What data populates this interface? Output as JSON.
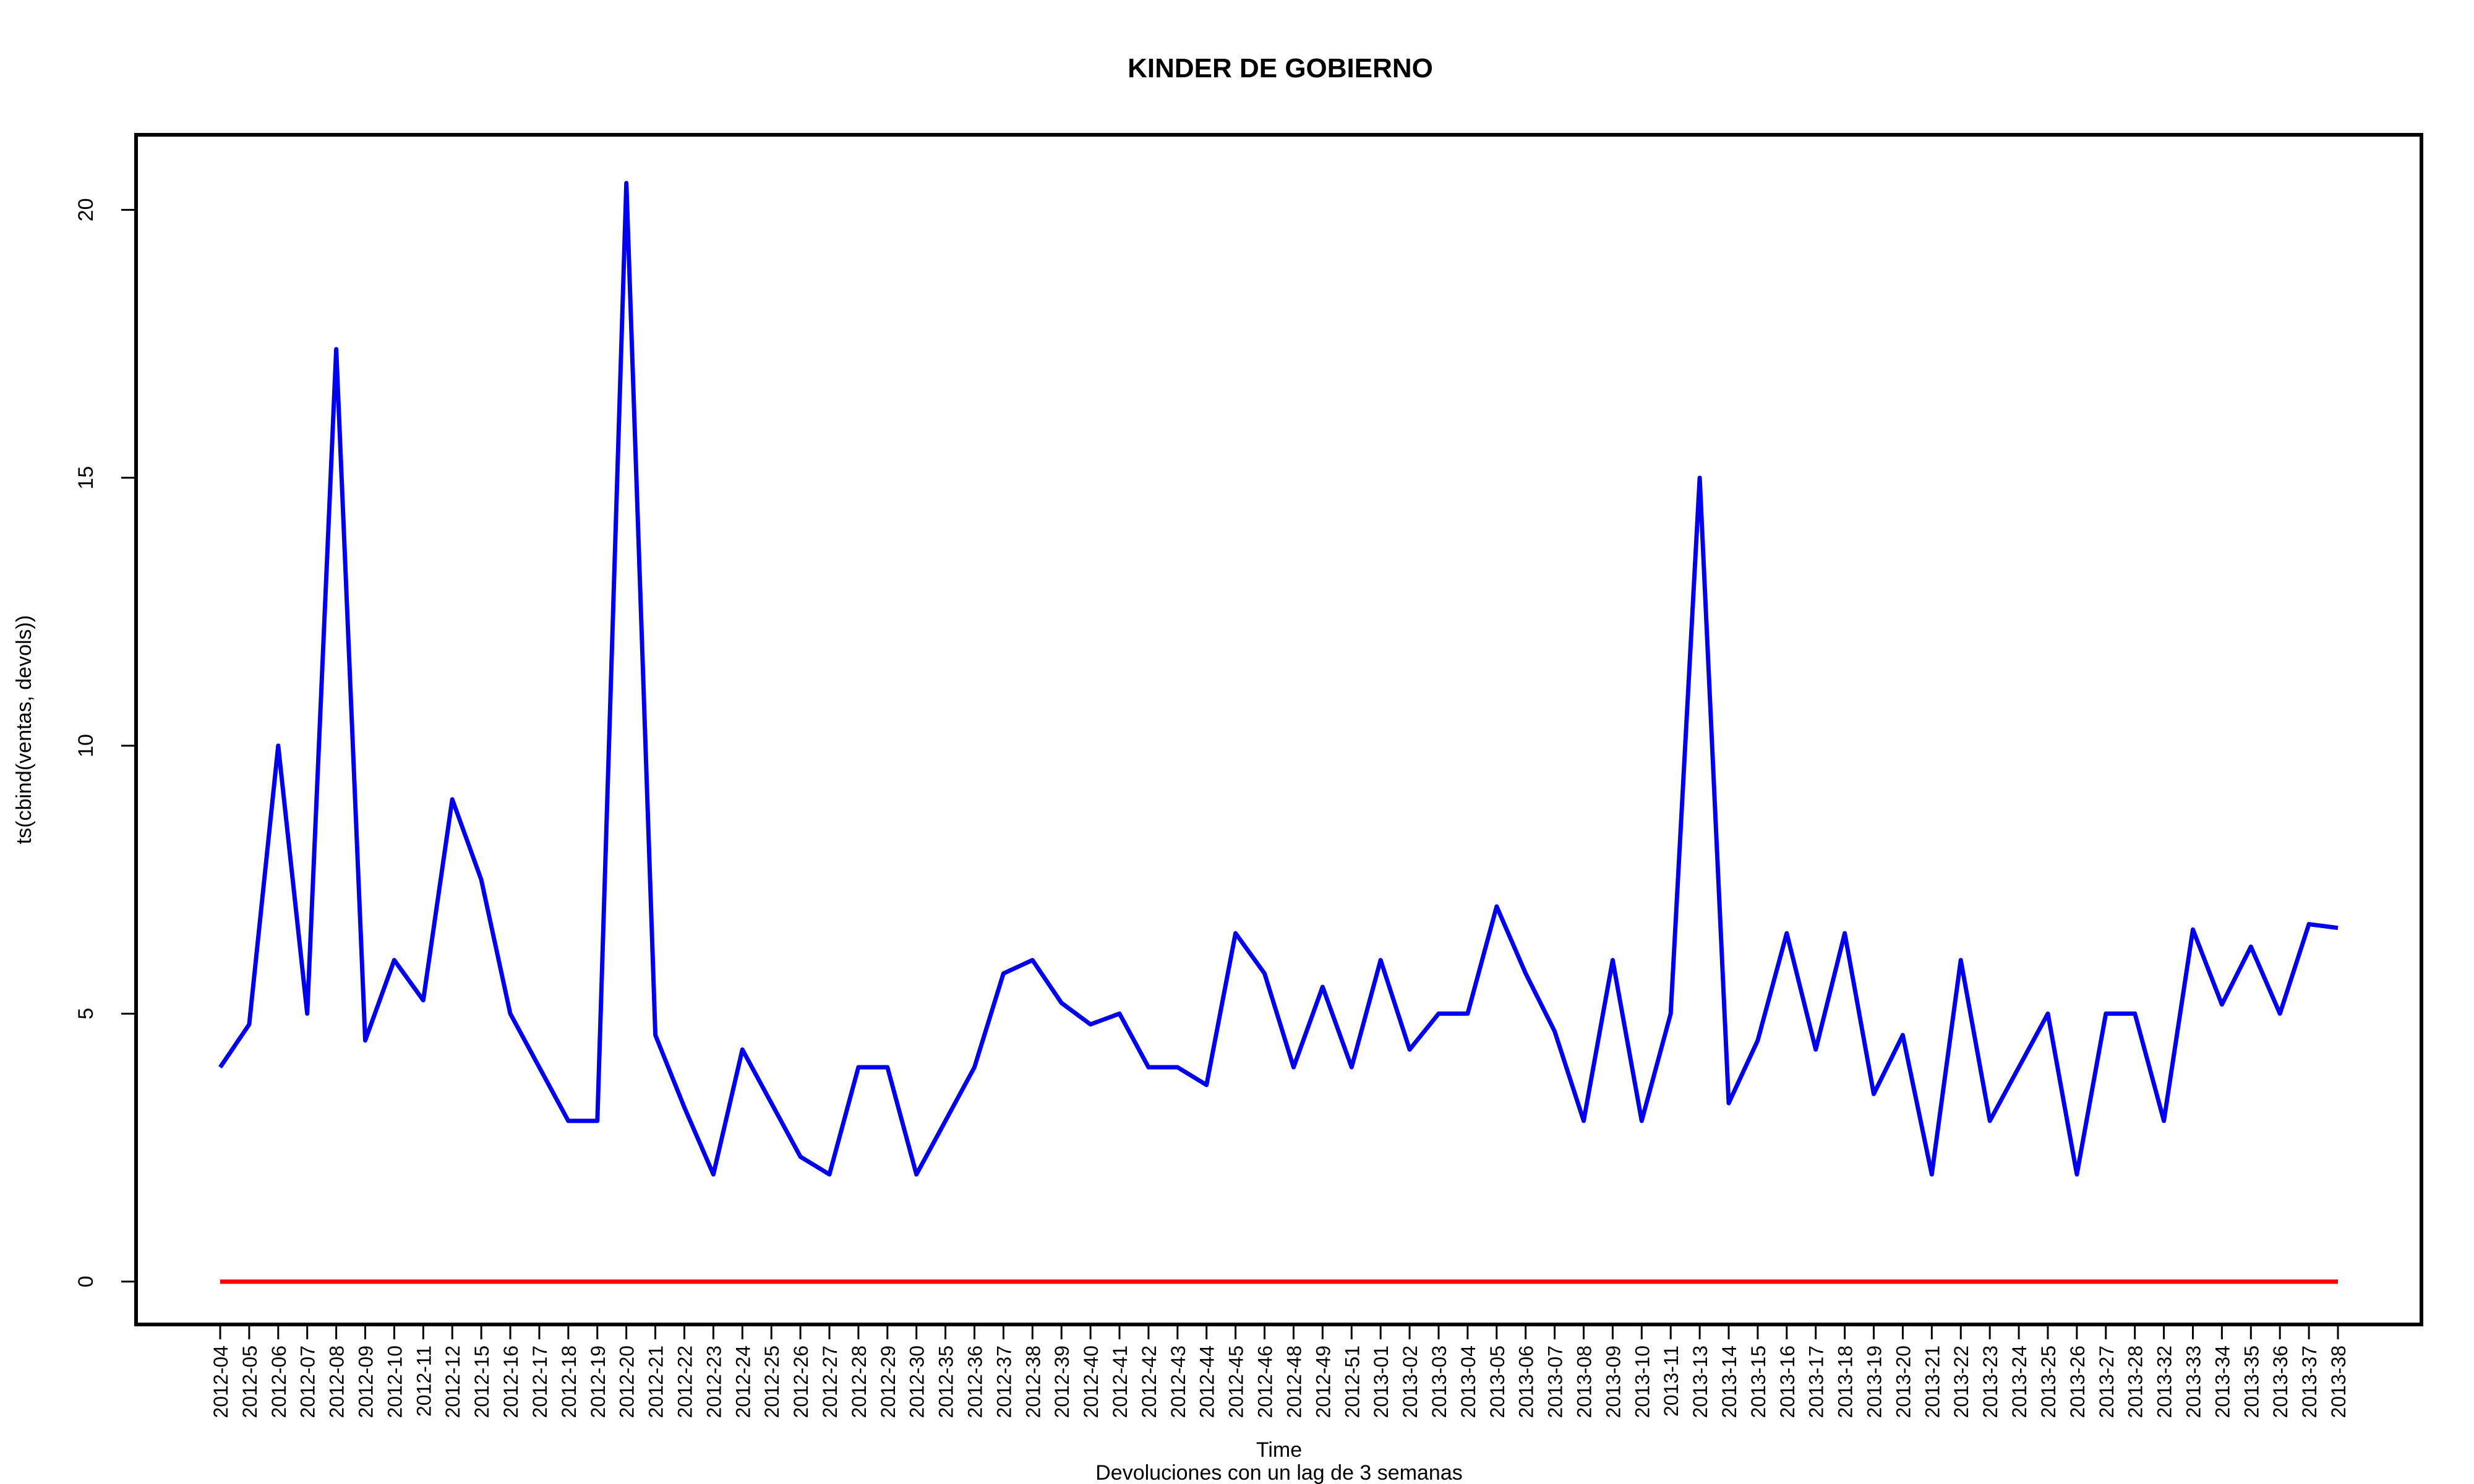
{
  "chart_data": {
    "type": "line",
    "title": "KINDER DE GOBIERNO",
    "xlabel": "Time",
    "subtitle": "Devoluciones con un lag de 3 semanas",
    "ylabel": "ts(cbind(ventas, devols))",
    "ylim": [
      -0.8,
      21.4
    ],
    "yticks": [
      0,
      5,
      10,
      15,
      20
    ],
    "grid": false,
    "x": [
      "2012-04",
      "2012-05",
      "2012-06",
      "2012-07",
      "2012-08",
      "2012-09",
      "2012-10",
      "2012-11",
      "2012-12",
      "2012-15",
      "2012-16",
      "2012-17",
      "2012-18",
      "2012-19",
      "2012-20",
      "2012-21",
      "2012-22",
      "2012-23",
      "2012-24",
      "2012-25",
      "2012-26",
      "2012-27",
      "2012-28",
      "2012-29",
      "2012-30",
      "2012-35",
      "2012-36",
      "2012-37",
      "2012-38",
      "2012-39",
      "2012-40",
      "2012-41",
      "2012-42",
      "2012-43",
      "2012-44",
      "2012-45",
      "2012-46",
      "2012-48",
      "2012-49",
      "2012-51",
      "2013-01",
      "2013-02",
      "2013-03",
      "2013-04",
      "2013-05",
      "2013-06",
      "2013-07",
      "2013-08",
      "2013-09",
      "2013-10",
      "2013-11",
      "2013-13",
      "2013-14",
      "2013-15",
      "2013-16",
      "2013-17",
      "2013-18",
      "2013-19",
      "2013-20",
      "2013-21",
      "2013-22",
      "2013-23",
      "2013-24",
      "2013-25",
      "2013-26",
      "2013-27",
      "2013-28",
      "2013-32",
      "2013-33",
      "2013-34",
      "2013-35",
      "2013-36",
      "2013-37",
      "2013-38"
    ],
    "series": [
      {
        "color": "#0000ee",
        "values": [
          4,
          4.8,
          10,
          5,
          17.4,
          4.5,
          6,
          5.25,
          9,
          7.5,
          5,
          4,
          3,
          3,
          20.5,
          4.6,
          3.25,
          2,
          4.33,
          3.33,
          2.33,
          2,
          4,
          4,
          2,
          3,
          4,
          5.75,
          6,
          5.2,
          4.8,
          5,
          4,
          4,
          3.67,
          6.5,
          5.75,
          4,
          5.5,
          4,
          6,
          4.33,
          5,
          5,
          7,
          5.75,
          4.67,
          3,
          6,
          3,
          5,
          15,
          3.33,
          4.5,
          6.5,
          4.33,
          6.5,
          3.5,
          4.6,
          2,
          6,
          3,
          4,
          5,
          2,
          5,
          5,
          3,
          6.57,
          5.17,
          6.25,
          5,
          6.67,
          6.6
        ]
      },
      {
        "color": "#ff0000",
        "values": [
          0,
          0,
          0,
          0,
          0,
          0,
          0,
          0,
          0,
          0,
          0,
          0,
          0,
          0,
          0,
          0,
          0,
          0,
          0,
          0,
          0,
          0,
          0,
          0,
          0,
          0,
          0,
          0,
          0,
          0,
          0,
          0,
          0,
          0,
          0,
          0,
          0,
          0,
          0,
          0,
          0,
          0,
          0,
          0,
          0,
          0,
          0,
          0,
          0,
          0,
          0,
          0,
          0,
          0,
          0,
          0,
          0,
          0,
          0,
          0,
          0,
          0,
          0,
          0,
          0,
          0,
          0,
          0,
          0,
          0,
          0,
          0,
          0,
          0
        ]
      }
    ]
  }
}
